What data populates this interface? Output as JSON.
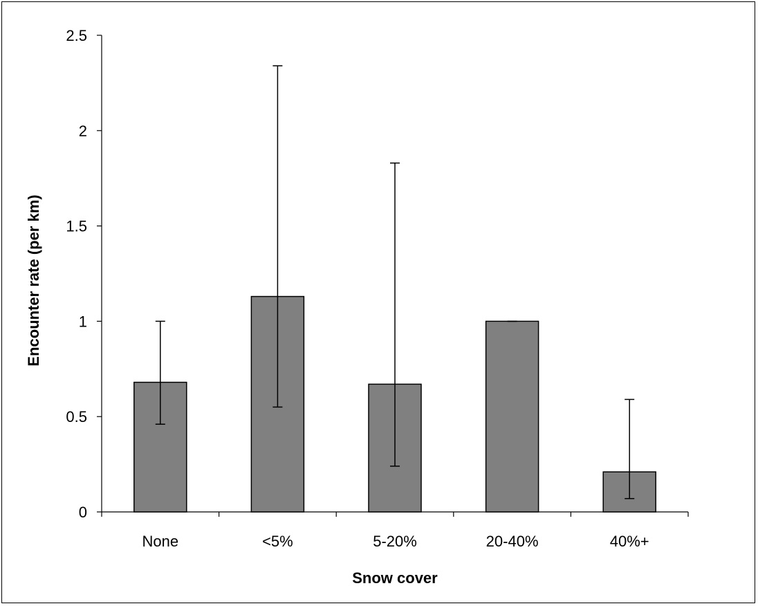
{
  "chart_data": {
    "type": "bar",
    "title": "",
    "xlabel": "Snow cover",
    "ylabel": "Encounter rate (per km)",
    "categories": [
      "None",
      "<5%",
      "5-20%",
      "20-40%",
      "40%+"
    ],
    "values": [
      0.68,
      1.13,
      0.67,
      1.0,
      0.21
    ],
    "error_low": [
      0.46,
      0.55,
      0.24,
      1.0,
      0.07
    ],
    "error_high": [
      1.0,
      2.34,
      1.83,
      1.0,
      0.59
    ],
    "ylim": [
      0,
      2.5
    ],
    "yticks": [
      "0",
      "0.5",
      "1",
      "1.5",
      "2",
      "2.5"
    ],
    "ytick_values": [
      0,
      0.5,
      1,
      1.5,
      2,
      2.5
    ],
    "grid": false,
    "legend": "none",
    "bar_color": "#808080"
  }
}
